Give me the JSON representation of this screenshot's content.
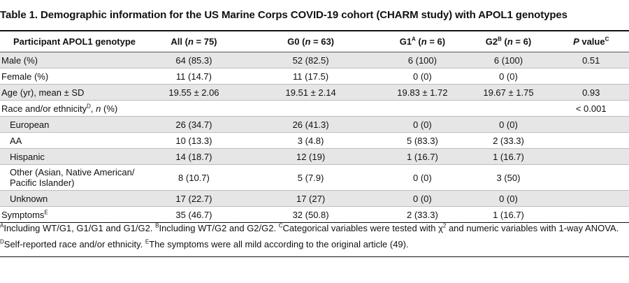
{
  "title": "Table 1. Demographic information for the US Marine Corps COVID-19 cohort (CHARM study) with APOL1 genotypes",
  "header": {
    "col0": "Participant APOL1 genotype",
    "col1": {
      "pre": "All (",
      "n": "n",
      "post": " = 75)"
    },
    "col2": {
      "pre": "G0 (",
      "n": "n",
      "post": " = 63)"
    },
    "col3": {
      "pre": "G1",
      "sup": "A",
      "mid": " (",
      "n": "n",
      "post": " = 6)"
    },
    "col4": {
      "pre": "G2",
      "sup": "B",
      "mid": " (",
      "n": "n",
      "post": " = 6)"
    },
    "col5": {
      "p": "P",
      "text": " value",
      "sup": "C"
    }
  },
  "rows": [
    {
      "label": "Male (%)",
      "all": "64 (85.3)",
      "g0": "52 (82.5)",
      "g1": "6 (100)",
      "g2": "6 (100)",
      "p": "0.51"
    },
    {
      "label": "Female (%)",
      "all": "11 (14.7)",
      "g0": "11 (17.5)",
      "g1": "0 (0)",
      "g2": "0 (0)",
      "p": ""
    },
    {
      "label": "Age (yr), mean ± SD",
      "all": "19.55 ± 2.06",
      "g0": "19.51 ± 2.14",
      "g1": "19.83 ± 1.72",
      "g2": "19.67 ± 1.75",
      "p": "0.93"
    },
    {
      "label_pre": "Race and/or ethnicity",
      "label_sup": "D",
      "label_mid": ", ",
      "label_n": "n",
      "label_post": " (%)",
      "all": "",
      "g0": "",
      "g1": "",
      "g2": "",
      "p": "< 0.001"
    },
    {
      "label": "European",
      "all": "26 (34.7)",
      "g0": "26 (41.3)",
      "g1": "0 (0)",
      "g2": "0 (0)",
      "p": ""
    },
    {
      "label": "AA",
      "all": "10 (13.3)",
      "g0": "3 (4.8)",
      "g1": "5 (83.3)",
      "g2": "2 (33.3)",
      "p": ""
    },
    {
      "label": "Hispanic",
      "all": "14 (18.7)",
      "g0": "12 (19)",
      "g1": "1 (16.7)",
      "g2": "1 (16.7)",
      "p": ""
    },
    {
      "label_line1": "Other (Asian, Native American/",
      "label_line2": "Pacific Islander)",
      "all": "8 (10.7)",
      "g0": "5 (7.9)",
      "g1": "0 (0)",
      "g2": "3 (50)",
      "p": ""
    },
    {
      "label": "Unknown",
      "all": "17 (22.7)",
      "g0": "17 (27)",
      "g1": "0 (0)",
      "g2": "0 (0)",
      "p": ""
    },
    {
      "label_pre": "Symptoms",
      "label_sup": "E",
      "all": "35 (46.7)",
      "g0": "32 (50.8)",
      "g1": "2 (33.3)",
      "g2": "1 (16.7)",
      "p": ""
    }
  ],
  "footnotes": {
    "a_sup": "A",
    "a": "Including WT/G1, G1/G1 and G1/G2. ",
    "b_sup": "B",
    "b": "Including WT/G2 and G2/G2. ",
    "c_sup": "C",
    "c_pre": "Categorical variables were tested with ",
    "c_chi": "χ",
    "c_chi_sup": "2",
    "c_post": " and numeric variables with 1-way ANOVA.",
    "d_sup": "D",
    "d": "Self-reported race and/or ethnicity. ",
    "e_sup": "E",
    "e": "The symptoms were all mild according to the original article (49)."
  }
}
